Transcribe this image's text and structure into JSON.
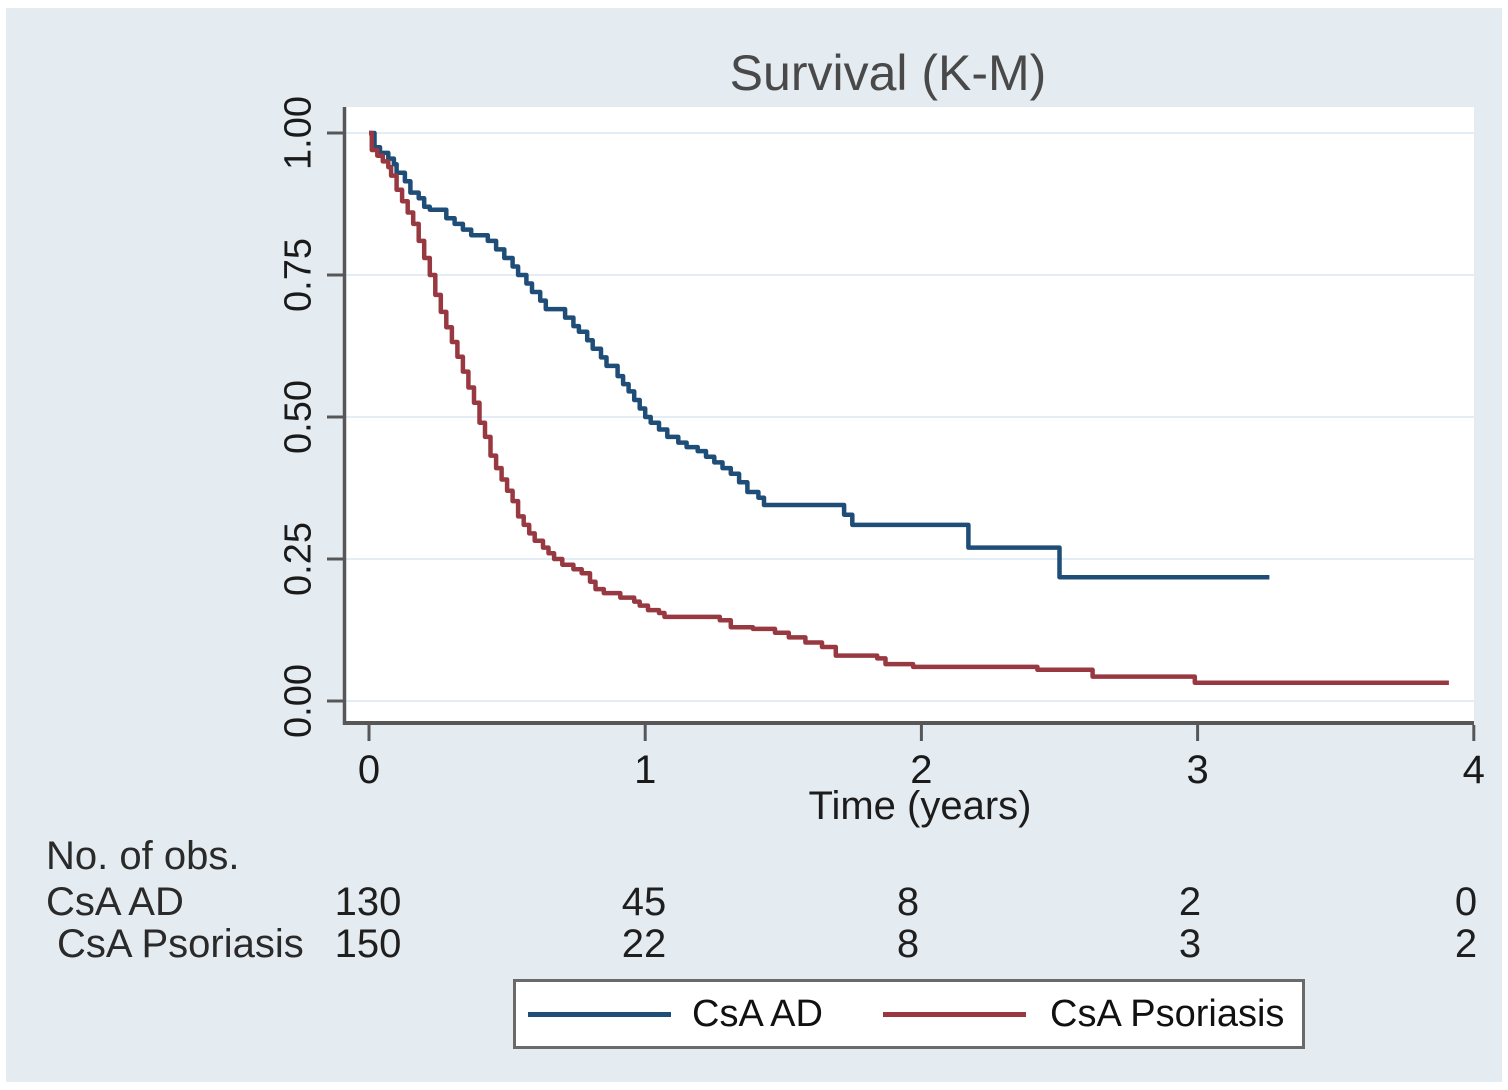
{
  "title": "Survival (K-M)",
  "x_axis": {
    "label": "Time (years)",
    "tick_labels": [
      "0",
      "1",
      "2",
      "3",
      "4"
    ],
    "tick_values": [
      0,
      1,
      2,
      3,
      4
    ]
  },
  "y_axis": {
    "tick_labels": [
      "1.00",
      "0.75",
      "0.50",
      "0.25",
      "0.00"
    ],
    "tick_values": [
      1.0,
      0.75,
      0.5,
      0.25,
      0.0
    ]
  },
  "chart_data": {
    "type": "line",
    "subtype": "kaplan-meier-step",
    "title": "Survival (K-M)",
    "xlabel": "Time (years)",
    "ylabel": "",
    "xlim": [
      0,
      4
    ],
    "ylim": [
      0.0,
      1.0
    ],
    "grid": "horizontal gridlines at 0.00, 0.25, 0.50, 0.75, 1.00",
    "legend_position": "bottom",
    "series": [
      {
        "name": "CsA AD",
        "color": "#1e4d78",
        "points": [
          [
            0,
            1
          ],
          [
            0.02,
            0.975
          ],
          [
            0.04,
            0.965
          ],
          [
            0.07,
            0.955
          ],
          [
            0.09,
            0.945
          ],
          [
            0.1,
            0.93
          ],
          [
            0.13,
            0.915
          ],
          [
            0.15,
            0.895
          ],
          [
            0.18,
            0.885
          ],
          [
            0.2,
            0.87
          ],
          [
            0.22,
            0.865
          ],
          [
            0.28,
            0.85
          ],
          [
            0.31,
            0.84
          ],
          [
            0.34,
            0.83
          ],
          [
            0.37,
            0.82
          ],
          [
            0.43,
            0.81
          ],
          [
            0.46,
            0.795
          ],
          [
            0.49,
            0.78
          ],
          [
            0.52,
            0.765
          ],
          [
            0.54,
            0.75
          ],
          [
            0.57,
            0.735
          ],
          [
            0.59,
            0.72
          ],
          [
            0.62,
            0.705
          ],
          [
            0.64,
            0.69
          ],
          [
            0.71,
            0.675
          ],
          [
            0.74,
            0.66
          ],
          [
            0.76,
            0.65
          ],
          [
            0.79,
            0.635
          ],
          [
            0.81,
            0.62
          ],
          [
            0.84,
            0.605
          ],
          [
            0.86,
            0.59
          ],
          [
            0.9,
            0.572
          ],
          [
            0.92,
            0.558
          ],
          [
            0.94,
            0.545
          ],
          [
            0.96,
            0.53
          ],
          [
            0.98,
            0.515
          ],
          [
            1,
            0.5
          ],
          [
            1.02,
            0.49
          ],
          [
            1.05,
            0.478
          ],
          [
            1.08,
            0.465
          ],
          [
            1.12,
            0.455
          ],
          [
            1.15,
            0.447
          ],
          [
            1.19,
            0.44
          ],
          [
            1.22,
            0.43
          ],
          [
            1.25,
            0.42
          ],
          [
            1.28,
            0.41
          ],
          [
            1.31,
            0.4
          ],
          [
            1.34,
            0.385
          ],
          [
            1.37,
            0.368
          ],
          [
            1.41,
            0.358
          ],
          [
            1.43,
            0.345
          ],
          [
            1.72,
            0.328
          ],
          [
            1.75,
            0.31
          ],
          [
            2.17,
            0.27
          ],
          [
            2.5,
            0.218
          ],
          [
            3.26,
            0.218
          ]
        ]
      },
      {
        "name": "CsA Psoriasis",
        "color": "#983941",
        "points": [
          [
            0,
            1
          ],
          [
            0.01,
            0.97
          ],
          [
            0.03,
            0.96
          ],
          [
            0.05,
            0.95
          ],
          [
            0.07,
            0.94
          ],
          [
            0.08,
            0.925
          ],
          [
            0.1,
            0.9
          ],
          [
            0.12,
            0.88
          ],
          [
            0.14,
            0.86
          ],
          [
            0.16,
            0.84
          ],
          [
            0.18,
            0.81
          ],
          [
            0.2,
            0.78
          ],
          [
            0.22,
            0.75
          ],
          [
            0.24,
            0.715
          ],
          [
            0.26,
            0.685
          ],
          [
            0.28,
            0.658
          ],
          [
            0.3,
            0.632
          ],
          [
            0.32,
            0.606
          ],
          [
            0.34,
            0.58
          ],
          [
            0.36,
            0.552
          ],
          [
            0.38,
            0.525
          ],
          [
            0.4,
            0.49
          ],
          [
            0.42,
            0.465
          ],
          [
            0.44,
            0.432
          ],
          [
            0.46,
            0.41
          ],
          [
            0.48,
            0.39
          ],
          [
            0.5,
            0.37
          ],
          [
            0.52,
            0.352
          ],
          [
            0.54,
            0.325
          ],
          [
            0.56,
            0.31
          ],
          [
            0.58,
            0.295
          ],
          [
            0.6,
            0.282
          ],
          [
            0.63,
            0.27
          ],
          [
            0.65,
            0.26
          ],
          [
            0.67,
            0.25
          ],
          [
            0.7,
            0.24
          ],
          [
            0.74,
            0.232
          ],
          [
            0.77,
            0.225
          ],
          [
            0.8,
            0.21
          ],
          [
            0.82,
            0.197
          ],
          [
            0.85,
            0.19
          ],
          [
            0.91,
            0.182
          ],
          [
            0.96,
            0.175
          ],
          [
            0.98,
            0.168
          ],
          [
            1.01,
            0.16
          ],
          [
            1.05,
            0.155
          ],
          [
            1.07,
            0.148
          ],
          [
            1.27,
            0.142
          ],
          [
            1.31,
            0.13
          ],
          [
            1.39,
            0.127
          ],
          [
            1.47,
            0.12
          ],
          [
            1.52,
            0.112
          ],
          [
            1.58,
            0.103
          ],
          [
            1.64,
            0.095
          ],
          [
            1.69,
            0.08
          ],
          [
            1.84,
            0.075
          ],
          [
            1.87,
            0.065
          ],
          [
            1.97,
            0.06
          ],
          [
            2.42,
            0.055
          ],
          [
            2.62,
            0.043
          ],
          [
            2.99,
            0.032
          ],
          [
            3.91,
            0.032
          ]
        ]
      }
    ]
  },
  "risk_table": {
    "header": "No. of obs.",
    "times": [
      0,
      1,
      2,
      3,
      4
    ],
    "rows": [
      {
        "label": "CsA AD",
        "counts": [
          "130",
          "45",
          "8",
          "2",
          "0"
        ]
      },
      {
        "label": "CsA Psoriasis",
        "counts": [
          "150",
          "22",
          "8",
          "3",
          "2"
        ]
      }
    ]
  },
  "legend": {
    "items": [
      {
        "label": "CsA AD",
        "color": "#1e4d78"
      },
      {
        "label": "CsA Psoriasis",
        "color": "#983941"
      }
    ]
  },
  "colors": {
    "outer_background": "#e5ecf1",
    "plot_background": "#ffffff",
    "gridline": "#e2edf5",
    "axis": "#575757",
    "title_text": "#494949",
    "text": "#1f1f1f"
  }
}
